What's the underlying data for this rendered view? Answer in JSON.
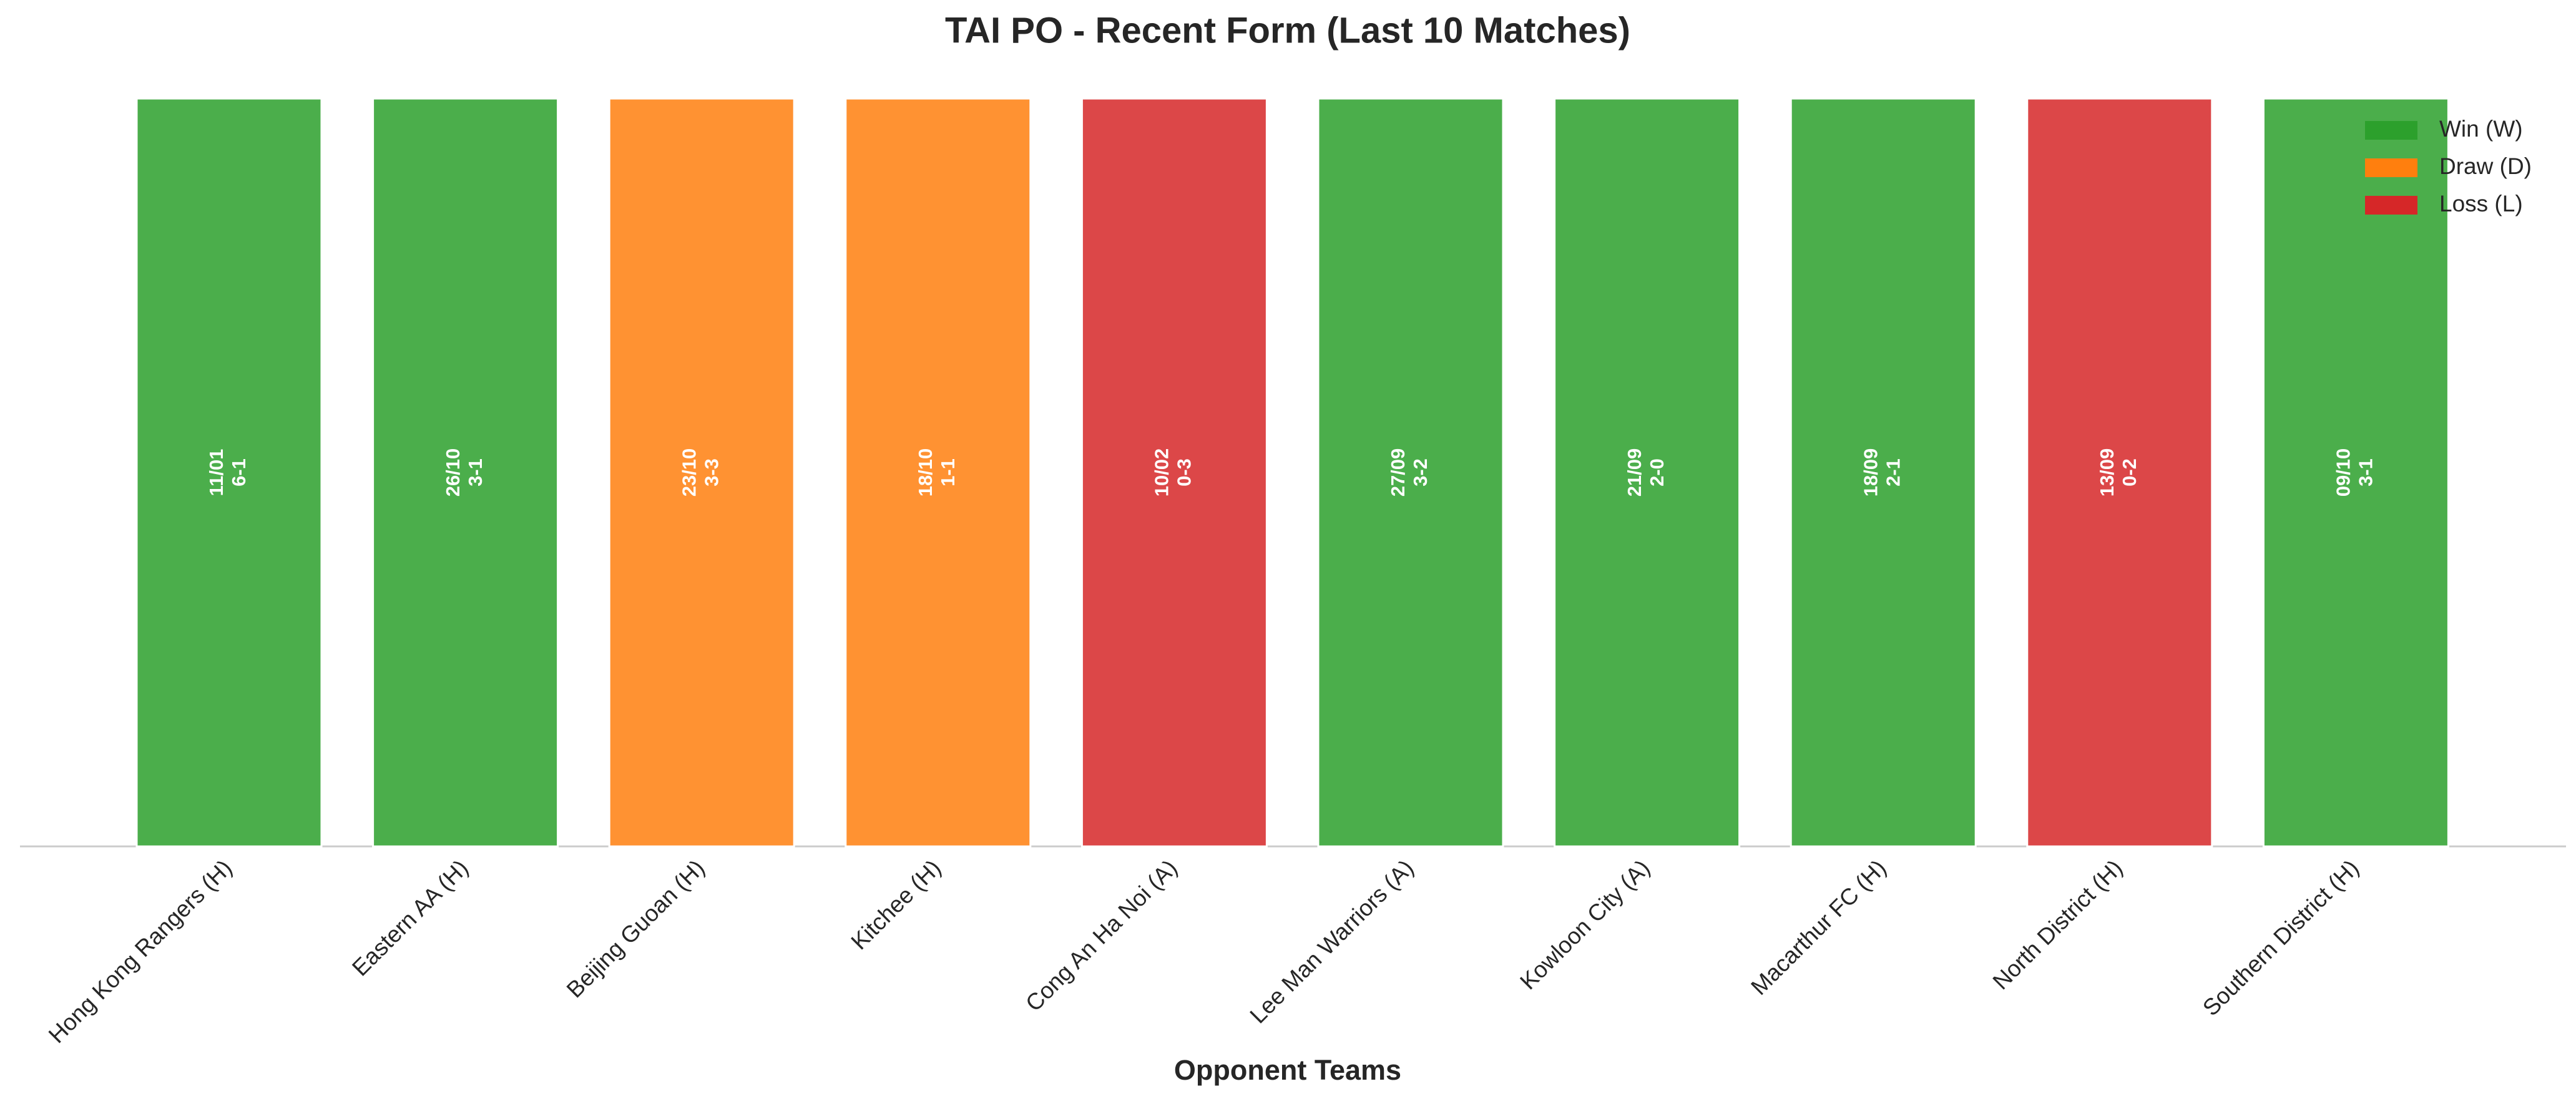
{
  "chart_data": {
    "type": "bar",
    "title": "TAI PO - Recent Form (Last 10 Matches)",
    "x_label": "Opponent Teams",
    "categories": [
      "Hong Kong Rangers (H)",
      "Eastern AA (H)",
      "Beijing Guoan (H)",
      "Kitchee (H)",
      "Cong An Ha Noi (A)",
      "Lee Man Warriors (A)",
      "Kowloon City (A)",
      "Macarthur FC (H)",
      "North District (H)",
      "Southern District (H)"
    ],
    "values": [
      1,
      1,
      1,
      1,
      1,
      1,
      1,
      1,
      1,
      1
    ],
    "dates": [
      "11/01",
      "26/10",
      "23/10",
      "18/10",
      "10/02",
      "27/09",
      "21/09",
      "18/09",
      "13/09",
      "09/10"
    ],
    "scores": [
      "6-1",
      "3-1",
      "3-3",
      "1-1",
      "0-3",
      "3-2",
      "2-0",
      "2-1",
      "0-2",
      "3-1"
    ],
    "bar_colors": [
      "#2ca02c",
      "#2ca02c",
      "#ff7f0e",
      "#ff7f0e",
      "#d62728",
      "#2ca02c",
      "#2ca02c",
      "#2ca02c",
      "#d62728",
      "#2ca02c"
    ],
    "ylim": [
      0,
      1
    ],
    "legend_position": "upper right",
    "legend": [
      {
        "name": "Win (W)",
        "color": "#2ca02c"
      },
      {
        "name": "Draw (D)",
        "color": "#ff7f0e"
      },
      {
        "name": "Loss (L)",
        "color": "#d62728"
      }
    ]
  }
}
